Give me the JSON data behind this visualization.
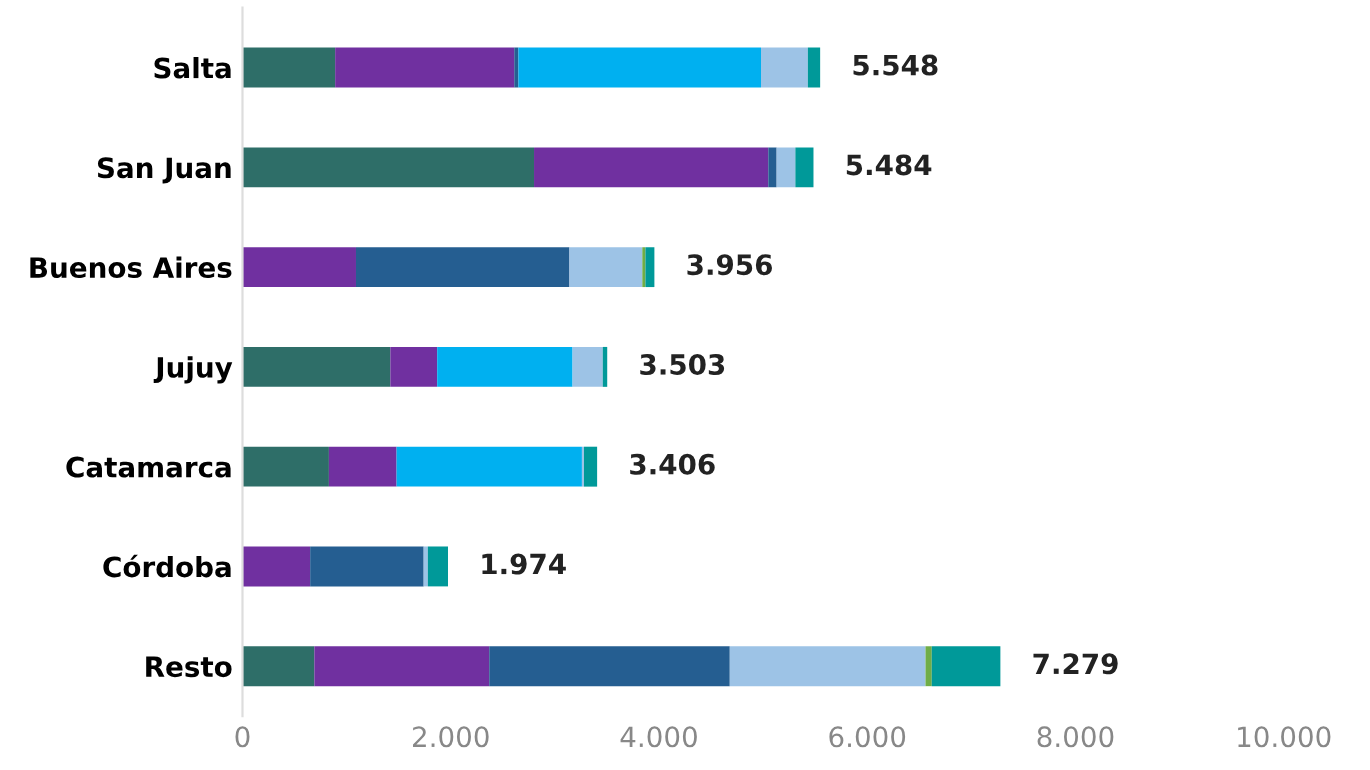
{
  "chart_data": {
    "type": "bar",
    "orientation": "horizontal",
    "stacked": true,
    "categories": [
      "Salta",
      "San Juan",
      "Buenos Aires",
      "Jujuy",
      "Catamarca",
      "Córdoba",
      "Resto"
    ],
    "series": [
      {
        "color": "#2e6e68",
        "values": [
          890,
          2800,
          null,
          1420,
          830,
          null,
          690
        ]
      },
      {
        "color": "#7030a0",
        "values": [
          1720,
          2250,
          1090,
          450,
          650,
          650,
          1680
        ]
      },
      {
        "color": "#255e91",
        "values": [
          40,
          80,
          2050,
          null,
          null,
          1090,
          2310
        ]
      },
      {
        "color": "#00b0f0",
        "values": [
          2330,
          null,
          null,
          1300,
          1780,
          null,
          null
        ]
      },
      {
        "color": "#9dc3e6",
        "values": [
          450,
          180,
          700,
          290,
          20,
          40,
          1880
        ]
      },
      {
        "color": "#70ad47",
        "values": [
          null,
          null,
          30,
          null,
          null,
          null,
          60
        ]
      },
      {
        "color": "#009999",
        "values": [
          118,
          174,
          86,
          43,
          126,
          194,
          659
        ]
      }
    ],
    "totals": [
      "5.548",
      "5.484",
      "3.956",
      "3.503",
      "3.406",
      "1.974",
      "7.279"
    ],
    "xlim": [
      0,
      10000
    ],
    "xticks": [
      {
        "value": 0,
        "label": "0"
      },
      {
        "value": 2000,
        "label": "2.000"
      },
      {
        "value": 4000,
        "label": "4.000"
      },
      {
        "value": 6000,
        "label": "6.000"
      },
      {
        "value": 8000,
        "label": "8.000"
      },
      {
        "value": 10000,
        "label": "10.000"
      }
    ],
    "grid": false
  }
}
